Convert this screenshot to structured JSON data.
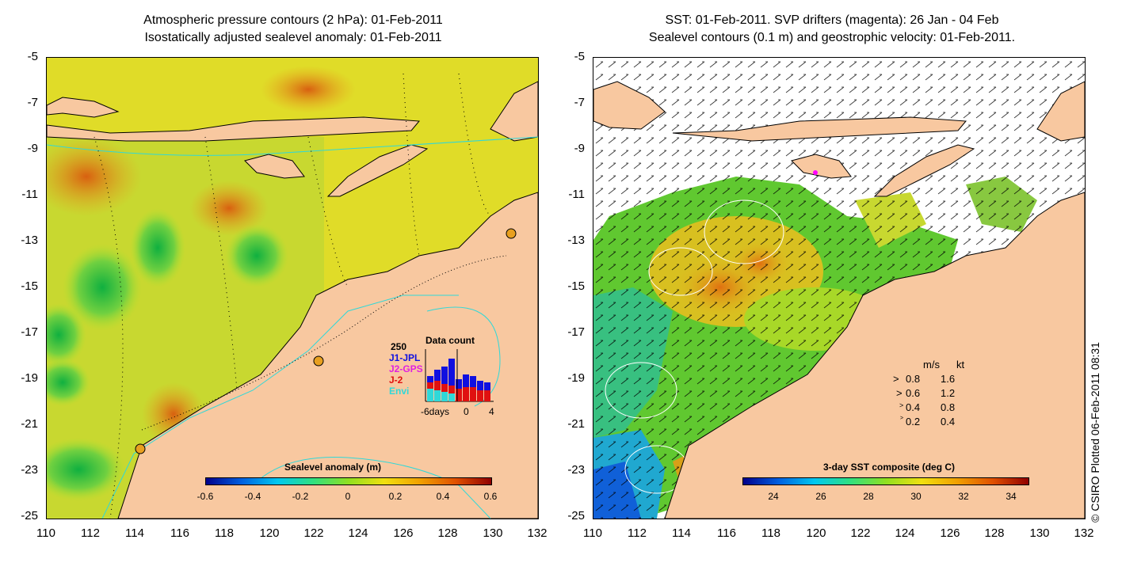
{
  "left_panel": {
    "title_line1": "Atmospheric pressure contours (2 hPa): 01-Feb-2011",
    "title_line2": "Isostatically adjusted sealevel anomaly: 01-Feb-2011",
    "colorbar_title": "Sealevel anomaly (m)",
    "colorbar_labels": [
      "-0.6",
      "-0.4",
      "-0.2",
      "0",
      "0.2",
      "0.4",
      "0.6"
    ],
    "inset": {
      "title": "Data count",
      "max_label": "250",
      "series": [
        {
          "name": "J1-JPL",
          "color": "#1010e0"
        },
        {
          "name": "J2-GPS",
          "color": "#e020e0"
        },
        {
          "name": "J-2",
          "color": "#e01010"
        },
        {
          "name": "Envi",
          "color": "#30d8d8"
        }
      ],
      "xlabels": [
        "-6days",
        "0",
        "4"
      ]
    }
  },
  "right_panel": {
    "title_line1": "SST: 01-Feb-2011. SVP drifters (magenta): 26 Jan - 04 Feb",
    "title_line2": "Sealevel contours (0.1 m) and geostrophic velocity: 01-Feb-2011.",
    "colorbar_title": "3-day SST composite (deg C)",
    "colorbar_labels": [
      "24",
      "26",
      "28",
      "30",
      "32",
      "34"
    ],
    "legend": {
      "header_ms": "m/s",
      "header_kt": "kt",
      "rows": [
        {
          "ms": "0.8",
          "kt": "1.6"
        },
        {
          "ms": "0.6",
          "kt": "1.2"
        },
        {
          "ms": "0.4",
          "kt": "0.8"
        },
        {
          "ms": "0.2",
          "kt": "0.4"
        }
      ]
    }
  },
  "axes": {
    "y_labels": [
      "-5",
      "-7",
      "-9",
      "-11",
      "-13",
      "-15",
      "-17",
      "-19",
      "-21",
      "-23",
      "-25"
    ],
    "x_labels": [
      "110",
      "112",
      "114",
      "116",
      "118",
      "120",
      "122",
      "124",
      "126",
      "128",
      "130",
      "132"
    ]
  },
  "copyright": "© CSIRO Plotted 06-Feb-2011 08:31",
  "colors": {
    "land": "#f8c8a0",
    "ocean_base": "#e8d820"
  }
}
